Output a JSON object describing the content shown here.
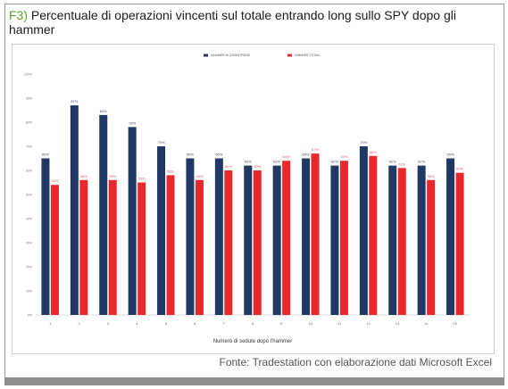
{
  "figure": {
    "title_prefix": "F3)",
    "title": "Percentuale di operazioni vincenti sul totale entrando long sullo SPY dopo gli hammer",
    "source": "Fonte: Tradestation con elaborazione dati Microsoft Excel"
  },
  "colors": {
    "series1": "#1f3864",
    "series2": "#e8282a",
    "label1": "#3a4a6a",
    "label2": "#e06060"
  },
  "chart_data": {
    "type": "bar",
    "xlabel": "Numero di sedute dopo l'hammer",
    "ylabel": "",
    "categories": [
      "1",
      "2",
      "3",
      "4",
      "5",
      "6",
      "7",
      "8",
      "9",
      "10",
      "11",
      "12",
      "13",
      "14",
      "15"
    ],
    "series": [
      {
        "name": "HAMMER IN DOWNTREND",
        "values": [
          65,
          87,
          83,
          78,
          70,
          65,
          65,
          62,
          62,
          65,
          62,
          70,
          62,
          62,
          65
        ],
        "labels": [
          "65%",
          "87%",
          "83%",
          "78%",
          "70%",
          "65%",
          "65%",
          "62%",
          "62%",
          "65%",
          "62%",
          "70%",
          "62%",
          "62%",
          "65%"
        ]
      },
      {
        "name": "HAMMER TOTALI",
        "values": [
          54,
          56,
          56,
          55,
          58,
          56,
          60,
          60,
          64,
          67,
          64,
          66,
          61,
          56,
          59
        ],
        "labels": [
          "54%",
          "56%",
          "56%",
          "55%",
          "58%",
          "56%",
          "60%",
          "60%",
          "64%",
          "67%",
          "64%",
          "66%",
          "61%",
          "56%",
          "59%"
        ]
      }
    ],
    "ylim": [
      0,
      100
    ],
    "yticks": [
      "0%",
      "10%",
      "20%",
      "30%",
      "40%",
      "50%",
      "60%",
      "70%",
      "80%",
      "90%",
      "100%"
    ],
    "legend_position": "top-center",
    "grid": false
  }
}
